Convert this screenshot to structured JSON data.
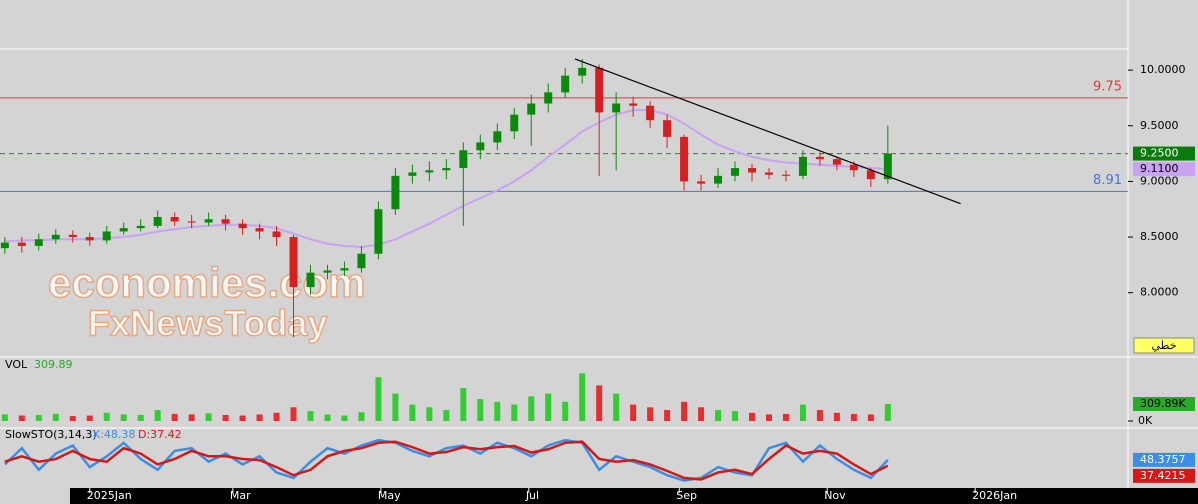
{
  "chart_data": [
    {
      "type": "candlestick",
      "x": [
        -35,
        -28,
        -21,
        -14,
        -7,
        0,
        7,
        14,
        21,
        28,
        35,
        42,
        49,
        56,
        63,
        70,
        77,
        84,
        91,
        98,
        105,
        112,
        119,
        126,
        133,
        140,
        147,
        154,
        161,
        168,
        175,
        182,
        189,
        196,
        203,
        210,
        217,
        224,
        231,
        238,
        245,
        252,
        259,
        266,
        273,
        280,
        287,
        294,
        301,
        308,
        315,
        322,
        329
      ],
      "open": [
        8.4,
        8.45,
        8.42,
        8.48,
        8.52,
        8.5,
        8.47,
        8.55,
        8.58,
        8.6,
        8.68,
        8.64,
        8.63,
        8.66,
        8.62,
        8.58,
        8.55,
        8.5,
        8.05,
        8.18,
        8.2,
        8.22,
        8.35,
        8.75,
        9.05,
        9.08,
        9.1,
        9.12,
        9.28,
        9.35,
        9.45,
        9.6,
        9.7,
        9.8,
        9.95,
        10.02,
        9.62,
        9.7,
        9.68,
        9.55,
        9.4,
        9.0,
        8.98,
        9.05,
        9.12,
        9.08,
        9.06,
        9.05,
        9.22,
        9.2,
        9.15,
        9.1,
        9.02
      ],
      "high": [
        8.5,
        8.5,
        8.53,
        8.57,
        8.56,
        8.54,
        8.6,
        8.63,
        8.66,
        8.74,
        8.72,
        8.7,
        8.72,
        8.7,
        8.66,
        8.62,
        8.6,
        8.52,
        8.25,
        8.25,
        8.28,
        8.42,
        8.82,
        9.12,
        9.15,
        9.18,
        9.2,
        9.35,
        9.42,
        9.52,
        9.66,
        9.78,
        9.88,
        10.02,
        10.1,
        10.05,
        9.8,
        9.76,
        9.72,
        9.6,
        9.42,
        9.06,
        9.12,
        9.18,
        9.16,
        9.12,
        9.1,
        9.28,
        9.26,
        9.22,
        9.18,
        9.12,
        9.5
      ],
      "low": [
        8.35,
        8.36,
        8.38,
        8.44,
        8.45,
        8.42,
        8.44,
        8.52,
        8.55,
        8.58,
        8.6,
        8.58,
        8.6,
        8.56,
        8.52,
        8.48,
        8.42,
        7.6,
        7.98,
        8.12,
        8.15,
        8.18,
        8.3,
        8.7,
        8.98,
        9.0,
        9.02,
        8.6,
        9.2,
        9.28,
        9.38,
        9.32,
        9.62,
        9.75,
        9.88,
        9.05,
        9.1,
        9.58,
        9.48,
        9.3,
        8.92,
        8.92,
        8.94,
        9.0,
        9.0,
        9.02,
        9.0,
        9.02,
        9.14,
        9.1,
        9.04,
        8.95,
        8.98
      ],
      "close": [
        8.45,
        8.42,
        8.48,
        8.52,
        8.5,
        8.47,
        8.55,
        8.58,
        8.6,
        8.68,
        8.64,
        8.63,
        8.66,
        8.62,
        8.58,
        8.55,
        8.5,
        8.05,
        8.18,
        8.2,
        8.22,
        8.35,
        8.75,
        9.05,
        9.08,
        9.1,
        9.12,
        9.28,
        9.35,
        9.45,
        9.6,
        9.7,
        9.8,
        9.95,
        10.02,
        9.62,
        9.7,
        9.68,
        9.55,
        9.4,
        9.0,
        8.98,
        9.05,
        9.12,
        9.08,
        9.06,
        9.05,
        9.22,
        9.2,
        9.15,
        9.1,
        9.02,
        9.25
      ],
      "up_color": "#0a8a0a",
      "down_color": "#d42020",
      "ma": {
        "color": "#c9a2f2",
        "values": [
          8.46,
          8.47,
          8.47,
          8.48,
          8.48,
          8.48,
          8.49,
          8.5,
          8.52,
          8.55,
          8.57,
          8.59,
          8.6,
          8.61,
          8.61,
          8.6,
          8.58,
          8.53,
          8.48,
          8.44,
          8.42,
          8.41,
          8.43,
          8.48,
          8.55,
          8.62,
          8.7,
          8.78,
          8.85,
          8.92,
          9.0,
          9.1,
          9.22,
          9.33,
          9.45,
          9.53,
          9.6,
          9.64,
          9.64,
          9.6,
          9.52,
          9.42,
          9.33,
          9.27,
          9.22,
          9.19,
          9.17,
          9.16,
          9.15,
          9.14,
          9.13,
          9.12,
          9.11
        ]
      },
      "xlim": [
        -37,
        428
      ],
      "ylim": [
        7.44,
        10.63
      ],
      "yticks": [
        {
          "value": 10,
          "label": "10.0000"
        },
        {
          "value": 9.5,
          "label": "9.5000"
        },
        {
          "value": 9,
          "label": "9.0000"
        },
        {
          "value": 8.5,
          "label": "8.5000"
        },
        {
          "value": 8,
          "label": "8.0000"
        }
      ],
      "levels": [
        {
          "value": 9.75,
          "label": "9.75",
          "color": "#e03a3a",
          "style": "solid"
        },
        {
          "value": 9.25,
          "color": "#1a8a1a",
          "style": "dashed"
        },
        {
          "value": 8.91,
          "label": "8.91",
          "color": "#4a72e0",
          "style": "solid"
        }
      ],
      "trendline": {
        "x": [
          200,
          359
        ],
        "y": [
          10.1,
          8.8
        ],
        "color": "#000000"
      },
      "tags": [
        {
          "value": 9.25,
          "label": "9.2500",
          "color": "#0a7a0a",
          "text_color": "#ffffff"
        },
        {
          "value": 9.11,
          "label": "9.1100",
          "color": "#c9a2f2",
          "text_color": "#000000"
        }
      ],
      "watermark": [
        "economies.com",
        "FxNewsToday"
      ],
      "scale_button": "خطي"
    },
    {
      "type": "bar",
      "title": "VOL",
      "x": [
        -35,
        -28,
        -21,
        -14,
        -7,
        0,
        7,
        14,
        21,
        28,
        35,
        42,
        49,
        56,
        63,
        70,
        77,
        84,
        91,
        98,
        105,
        112,
        119,
        126,
        133,
        140,
        147,
        154,
        161,
        168,
        175,
        182,
        189,
        196,
        203,
        210,
        217,
        224,
        231,
        238,
        245,
        252,
        259,
        266,
        273,
        280,
        287,
        294,
        301,
        308,
        315,
        322,
        329
      ],
      "values": [
        120,
        100,
        110,
        130,
        90,
        100,
        150,
        120,
        110,
        200,
        130,
        120,
        140,
        110,
        100,
        120,
        150,
        250,
        180,
        120,
        100,
        160,
        800,
        500,
        300,
        250,
        200,
        600,
        400,
        350,
        300,
        450,
        500,
        350,
        870,
        650,
        500,
        300,
        250,
        200,
        350,
        250,
        200,
        180,
        150,
        120,
        130,
        300,
        200,
        150,
        130,
        120,
        309.89
      ],
      "xlim": [
        -37,
        428
      ],
      "ylim": [
        0,
        1150
      ],
      "yticks": [
        {
          "value": 0,
          "label": "0K"
        }
      ],
      "tag": {
        "value": 309.89,
        "label": "309.89K",
        "color": "#2aa82a"
      }
    },
    {
      "type": "line",
      "title": "SlowSTO(3,14,3)",
      "x": [
        -35,
        -28,
        -21,
        -14,
        -7,
        0,
        7,
        14,
        21,
        28,
        35,
        42,
        49,
        56,
        63,
        70,
        77,
        84,
        91,
        98,
        105,
        112,
        119,
        126,
        133,
        140,
        147,
        154,
        161,
        168,
        175,
        182,
        189,
        196,
        203,
        210,
        217,
        224,
        231,
        238,
        245,
        252,
        259,
        266,
        273,
        280,
        287,
        294,
        301,
        308,
        315,
        322,
        329
      ],
      "series": [
        {
          "name": "K:48.38",
          "color": "#3a8ee6",
          "values": [
            40,
            70,
            30,
            60,
            75,
            35,
            55,
            80,
            50,
            30,
            65,
            70,
            45,
            60,
            40,
            55,
            25,
            15,
            45,
            70,
            60,
            75,
            85,
            80,
            65,
            55,
            70,
            75,
            60,
            80,
            70,
            55,
            75,
            85,
            80,
            30,
            55,
            45,
            35,
            20,
            10,
            15,
            35,
            25,
            20,
            70,
            80,
            45,
            75,
            50,
            30,
            15,
            48.3757
          ]
        },
        {
          "name": "D:37.42",
          "color": "#d41818",
          "values": [
            45,
            55,
            45,
            50,
            65,
            50,
            45,
            70,
            60,
            40,
            50,
            65,
            55,
            55,
            50,
            48,
            35,
            20,
            30,
            55,
            65,
            70,
            80,
            82,
            72,
            60,
            63,
            72,
            68,
            72,
            74,
            62,
            68,
            80,
            82,
            50,
            45,
            48,
            40,
            28,
            15,
            12,
            25,
            30,
            22,
            50,
            75,
            60,
            65,
            60,
            40,
            22,
            37.4215
          ]
        }
      ],
      "tags": [
        48.3757,
        37.4215
      ],
      "xlim": [
        -37,
        428
      ],
      "ylim": [
        0,
        100
      ],
      "xticks": [
        {
          "value": 0,
          "label": "2025Jan"
        },
        {
          "value": 59,
          "label": "Mar"
        },
        {
          "value": 120,
          "label": "May"
        },
        {
          "value": 181,
          "label": "Jul"
        },
        {
          "value": 243,
          "label": "Sep"
        },
        {
          "value": 304,
          "label": "Nov"
        },
        {
          "value": 365,
          "label": "2026Jan"
        }
      ]
    }
  ]
}
